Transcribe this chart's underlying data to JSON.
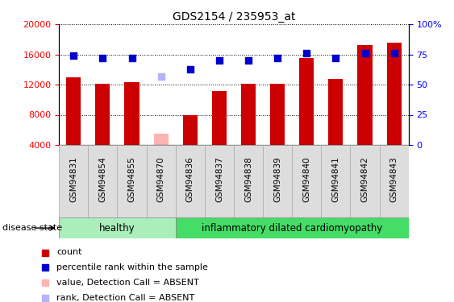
{
  "title": "GDS2154 / 235953_at",
  "samples": [
    "GSM94831",
    "GSM94854",
    "GSM94855",
    "GSM94870",
    "GSM94836",
    "GSM94837",
    "GSM94838",
    "GSM94839",
    "GSM94840",
    "GSM94841",
    "GSM94842",
    "GSM94843"
  ],
  "counts": [
    13000,
    12100,
    12300,
    null,
    7900,
    11100,
    12100,
    12100,
    15500,
    12700,
    17200,
    17500
  ],
  "absent_counts": [
    null,
    null,
    null,
    5500,
    null,
    null,
    null,
    null,
    null,
    null,
    null,
    null
  ],
  "percentiles": [
    74,
    72,
    72,
    null,
    63,
    70,
    70,
    72,
    76,
    72,
    76,
    76
  ],
  "absent_percentiles": [
    null,
    null,
    null,
    57,
    null,
    null,
    null,
    null,
    null,
    null,
    null,
    null
  ],
  "healthy_count": 4,
  "ylim_left": [
    4000,
    20000
  ],
  "ylim_right": [
    0,
    100
  ],
  "y_ticks_left": [
    4000,
    8000,
    12000,
    16000,
    20000
  ],
  "y_ticks_right": [
    0,
    25,
    50,
    75,
    100
  ],
  "y_labels_right": [
    "0",
    "25",
    "50",
    "75",
    "100%"
  ],
  "bar_color": "#cc0000",
  "absent_bar_color": "#ffb3b3",
  "dot_color": "#0000cc",
  "absent_dot_color": "#b3b3ff",
  "healthy_bg": "#aaeebb",
  "disease_bg": "#44dd66",
  "group_label_healthy": "healthy",
  "group_label_disease": "inflammatory dilated cardiomyopathy",
  "disease_state_label": "disease state",
  "legend_items": [
    {
      "label": "count",
      "color": "#cc0000"
    },
    {
      "label": "percentile rank within the sample",
      "color": "#0000cc"
    },
    {
      "label": "value, Detection Call = ABSENT",
      "color": "#ffb3b3"
    },
    {
      "label": "rank, Detection Call = ABSENT",
      "color": "#b3b3ff"
    }
  ],
  "bar_width": 0.5,
  "dot_size": 40,
  "tick_labelsize": 8
}
